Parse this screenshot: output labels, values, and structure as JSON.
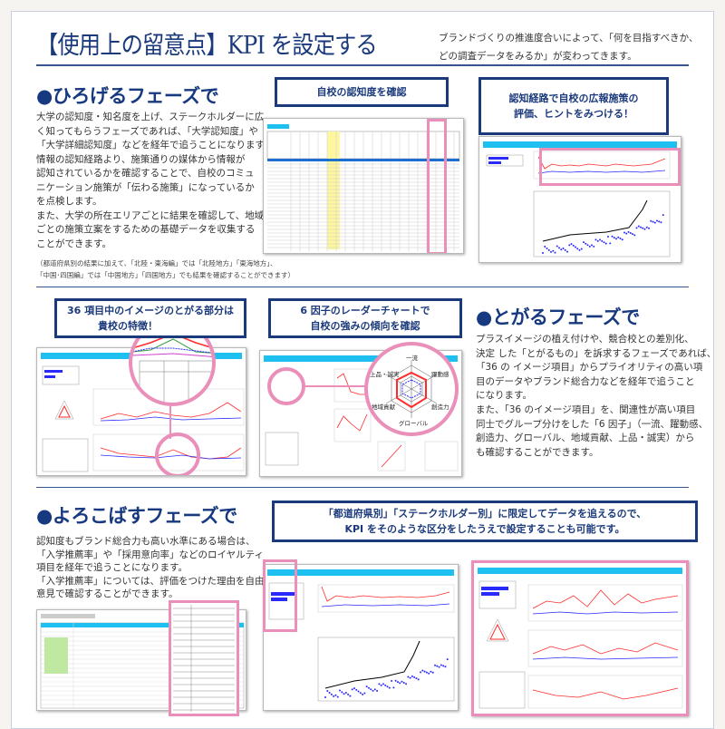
{
  "header": {
    "title": "【使用上の留意点】KPI を設定する",
    "intro": [
      "ブランドづくりの推進度合いによって、「何を目指すべきか、",
      "どの調査データをみるか」が変わってきます。"
    ]
  },
  "sections": {
    "hirogeru": {
      "heading": "●ひろげるフェーズで",
      "body": [
        "大学の認知度・知名度を上げ、ステークホルダーに広",
        "く知ってもらうフェーズであれば、「大学認知度」や",
        "「大学詳細認知度」などを経年で追うことになります。",
        "情報の認知経路より、施策通りの媒体から情報が",
        "認知されているかを確認することで、自校のコミュ",
        "ニケーション施策が「伝わる施策」になっているか",
        "を点検します。",
        "また、大学の所在エリアごとに結果を確認して、地域",
        "ごとの施策立案をするための基礎データを収集する",
        "ことができます。"
      ],
      "note": [
        "（都道府県別の結果に加えて、「北陸・東海編」では「北陸地方」「東海地方」、",
        "「中国･四国編」では「中国地方」「四国地方」でも結果を確認することができます）"
      ],
      "callouts": [
        [
          "自校の認知度を確認"
        ],
        [
          "認知経路で自校の広報施策の",
          "評価、ヒントをみつける！"
        ]
      ]
    },
    "togaru": {
      "heading": "●とがるフェーズで",
      "body": [
        "プラスイメージの植え付けや、競合校との差別化、",
        "決定 した「とがるもの」を訴求するフェーズであれば、",
        "「36 の イメージ項目」からプライオリティの高い項",
        "目のデータやブランド総合力などを経年で追うこと",
        "になります。",
        "また、「36 のイメージ項目」を、関連性が高い項目",
        "同士でグループ分けをした「6 因子」（一流、躍動感、",
        "創造力、グローバル、地域貢献、上品・誠実）から",
        "も確認することができます。"
      ],
      "callouts": [
        [
          "36 項目中のイメージのとがる部分は",
          "貴校の特徴！"
        ],
        [
          "6 因子のレーダーチャートで",
          "自校の強みの傾向を確認"
        ]
      ],
      "radar_labels": [
        "一流",
        "躍動感",
        "創造力",
        "グローバル",
        "地域貢献",
        "上品・誠実"
      ]
    },
    "yorokobasu": {
      "heading": "●よろこばすフェーズで",
      "body": [
        "認知度もブランド総合力も高い水準にある場合は、",
        "「入学推薦率」や「採用意向率」などのロイヤルティ",
        "項目を経年で追うことになります。",
        "「入学推薦率」については、評価をつけた理由を自由",
        "意見で確認することができます。"
      ],
      "callout": [
        "「都道府県別」「ステークホルダー別」に限定してデータを追えるので、",
        "KPI をそのような区分をしたうえで設定することも可能です。"
      ]
    }
  },
  "colors": {
    "navy": "#1b3a7c",
    "highlight_pink": "#e98fb9",
    "report_header_cyan": "#1ec0f0",
    "series_red": "#ff2a2a",
    "series_blue": "#2a2aff"
  }
}
